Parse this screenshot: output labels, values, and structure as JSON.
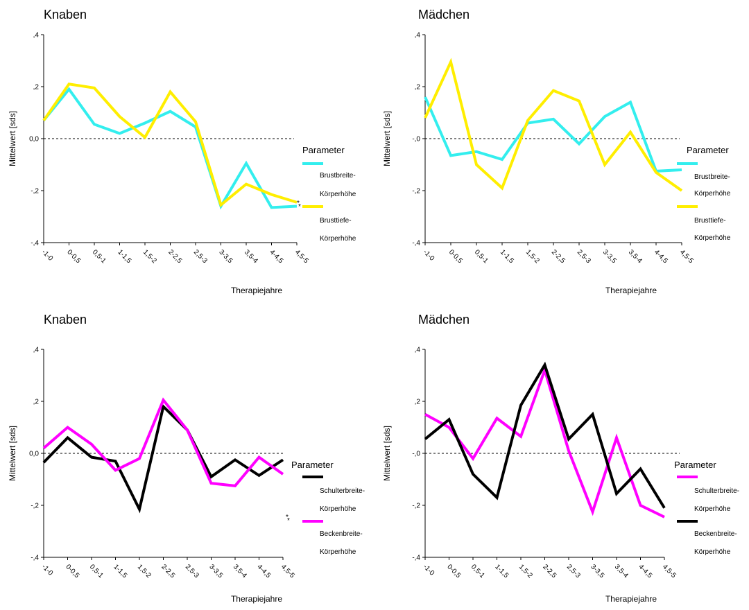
{
  "chart_data": [
    {
      "type": "line",
      "title": "Knaben",
      "xlabel": "Therapiejahre",
      "ylabel": "Mittelwert [sds]",
      "ylim": [
        -0.4,
        0.4
      ],
      "yticks": [
        {
          "value": 0.4,
          "label": ",4"
        },
        {
          "value": 0.2,
          "label": ",2"
        },
        {
          "value": 0.0,
          "label": "0,0"
        },
        {
          "value": -0.2,
          "label": "-,2"
        },
        {
          "value": -0.4,
          "label": "-,4"
        }
      ],
      "categories": [
        "-1-0",
        "0-0,5",
        "0,5-1",
        "1-1,5",
        "1,5-2",
        "2-2,5",
        "2,5-3",
        "3-3,5",
        "3,5-4",
        "4-4,5",
        "4,5-5"
      ],
      "reference_line": 0,
      "legend": {
        "title": "Parameter",
        "position": "right"
      },
      "series": [
        {
          "name": "Brustbreite-Körperhöhe",
          "color": "#33eeee",
          "values": [
            0.07,
            0.19,
            0.055,
            0.02,
            0.06,
            0.105,
            0.045,
            -0.26,
            -0.095,
            -0.265,
            -0.26
          ]
        },
        {
          "name": "Brusttiefe-Körperhöhe",
          "color": "#ffee00",
          "values": [
            0.07,
            0.21,
            0.195,
            0.085,
            0.005,
            0.18,
            0.065,
            -0.255,
            -0.175,
            -0.215,
            -0.245
          ]
        }
      ]
    },
    {
      "type": "line",
      "title": "Mädchen",
      "xlabel": "Therapiejahre",
      "ylabel": "Mittelwert [sds]",
      "ylim": [
        -0.4,
        0.4
      ],
      "yticks": [
        {
          "value": 0.4,
          "label": ",4"
        },
        {
          "value": 0.2,
          "label": ",2"
        },
        {
          "value": 0.0,
          "label": "-,0"
        },
        {
          "value": -0.2,
          "label": "-,2"
        },
        {
          "value": -0.4,
          "label": "-,4"
        }
      ],
      "categories": [
        "-1-0",
        "0-0,5",
        "0,5-1",
        "1-1,5",
        "1,5-2",
        "2-2,5",
        "2,5-3",
        "3-3,5",
        "3,5-4",
        "4-4,5",
        "4,5-5"
      ],
      "reference_line": 0,
      "legend": {
        "title": "Parameter",
        "position": "right"
      },
      "series": [
        {
          "name": "Brustbreite-Körperhöhe",
          "color": "#33eeee",
          "values": [
            0.16,
            -0.065,
            -0.05,
            -0.08,
            0.06,
            0.075,
            -0.02,
            0.085,
            0.14,
            -0.125,
            -0.12
          ]
        },
        {
          "name": "Brusttiefe-Körperhöhe",
          "color": "#ffee00",
          "values": [
            0.08,
            0.295,
            -0.1,
            -0.19,
            0.07,
            0.185,
            0.145,
            -0.1,
            0.025,
            -0.13,
            -0.2
          ]
        }
      ]
    },
    {
      "type": "line",
      "title": "Knaben",
      "xlabel": "Therapiejahre",
      "ylabel": "Mittelwert [sds]",
      "ylim": [
        -0.4,
        0.4
      ],
      "yticks": [
        {
          "value": 0.4,
          "label": ",4"
        },
        {
          "value": 0.2,
          "label": ",2"
        },
        {
          "value": 0.0,
          "label": "0,0"
        },
        {
          "value": -0.2,
          "label": "-,2"
        },
        {
          "value": -0.4,
          "label": "-,4"
        }
      ],
      "categories": [
        "-1-0",
        "0-0,5",
        "0,5-1",
        "1-1,5",
        "1,5-2",
        "2-2,5",
        "2,5-3",
        "3-3,5",
        "3,5-4",
        "4-4,5",
        "4,5-5"
      ],
      "reference_line": 0,
      "legend": {
        "title": "Parameter",
        "position": "right"
      },
      "series": [
        {
          "name": "Schulterbreite-Körperhöhe",
          "color": "#000000",
          "values": [
            -0.035,
            0.06,
            -0.015,
            -0.03,
            -0.215,
            0.18,
            0.09,
            -0.09,
            -0.025,
            -0.085,
            -0.025
          ]
        },
        {
          "name": "Beckenbreite-Körperhöhe",
          "color": "#ff00ff",
          "values": [
            0.02,
            0.1,
            0.035,
            -0.065,
            -0.02,
            0.205,
            0.09,
            -0.115,
            -0.125,
            -0.015,
            -0.08
          ]
        }
      ]
    },
    {
      "type": "line",
      "title": "Mädchen",
      "xlabel": "Therapiejahre",
      "ylabel": "Mittelwert [sds]",
      "ylim": [
        -0.4,
        0.4
      ],
      "yticks": [
        {
          "value": 0.4,
          "label": ",4"
        },
        {
          "value": 0.2,
          "label": ",2"
        },
        {
          "value": 0.0,
          "label": "-,0"
        },
        {
          "value": -0.2,
          "label": "-,2"
        },
        {
          "value": -0.4,
          "label": "-,4"
        }
      ],
      "categories": [
        "-1-0",
        "0-0,5",
        "0,5-1",
        "1-1,5",
        "1,5-2",
        "2-2,5",
        "2,5-3",
        "3-3,5",
        "3,5-4",
        "4-4,5",
        "4,5-5"
      ],
      "reference_line": 0,
      "legend": {
        "title": "Parameter",
        "position": "right"
      },
      "series": [
        {
          "name": "Schulterbreite-Körperhöhe",
          "color": "#ff00ff",
          "values": [
            0.15,
            0.1,
            -0.02,
            0.135,
            0.065,
            0.32,
            0.01,
            -0.225,
            0.06,
            -0.2,
            -0.245
          ]
        },
        {
          "name": "Beckenbreite-Körperhöhe",
          "color": "#000000",
          "values": [
            0.055,
            0.13,
            -0.08,
            -0.17,
            0.185,
            0.34,
            0.055,
            0.15,
            -0.155,
            -0.06,
            -0.21
          ]
        }
      ]
    }
  ]
}
